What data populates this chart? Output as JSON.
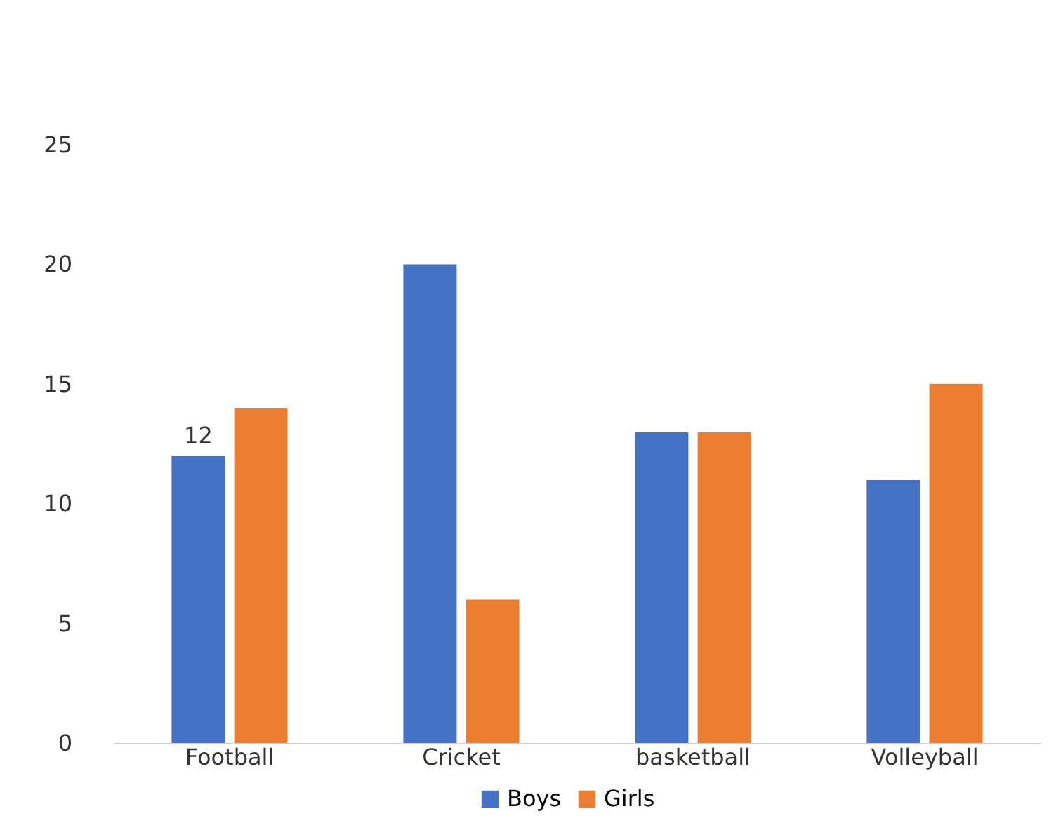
{
  "chart_data": {
    "type": "bar",
    "categories": [
      "Football",
      "Cricket",
      "basketball",
      "Volleyball"
    ],
    "series": [
      {
        "name": "Boys",
        "color": "#4472c4",
        "values": [
          12,
          20,
          13,
          11
        ],
        "value_labels": [
          "12",
          null,
          null,
          null
        ]
      },
      {
        "name": "Girls",
        "color": "#ed7d31",
        "values": [
          14,
          6,
          13,
          15
        ]
      }
    ],
    "ylim": [
      0,
      25
    ],
    "yticks": [
      0,
      5,
      10,
      15,
      20,
      25
    ],
    "grid": false,
    "legend": "bottom"
  }
}
